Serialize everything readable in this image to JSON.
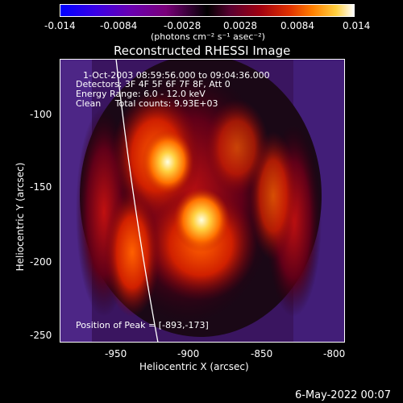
{
  "colorbar": {
    "ticks": [
      "-0.014",
      "-0.0084",
      "-0.0028",
      "0.0028",
      "0.0084",
      "0.014"
    ],
    "units": "(photons cm⁻² s⁻¹ asec⁻²)"
  },
  "title": "Reconstructed RHESSI Image",
  "annotations": {
    "time": "1-Oct-2003 08:59:56.000 to 09:04:36.000",
    "detectors": "Detectors: 3F 4F 5F 6F 7F 8F, Att 0",
    "energy": "Energy Range: 6.0 - 12.0 keV",
    "clean": "Clean     Total counts: 9.93E+03",
    "peak": "Position of Peak = [-893,-173]"
  },
  "axes": {
    "xlabel": "Heliocentric X (arcsec)",
    "ylabel": "Heliocentric Y (arcsec)",
    "xticks": [
      "-950",
      "-900",
      "-850",
      "-800"
    ],
    "yticks": [
      "-100",
      "-150",
      "-200",
      "-250"
    ]
  },
  "footer_date": "6-May-2022 00:07"
}
